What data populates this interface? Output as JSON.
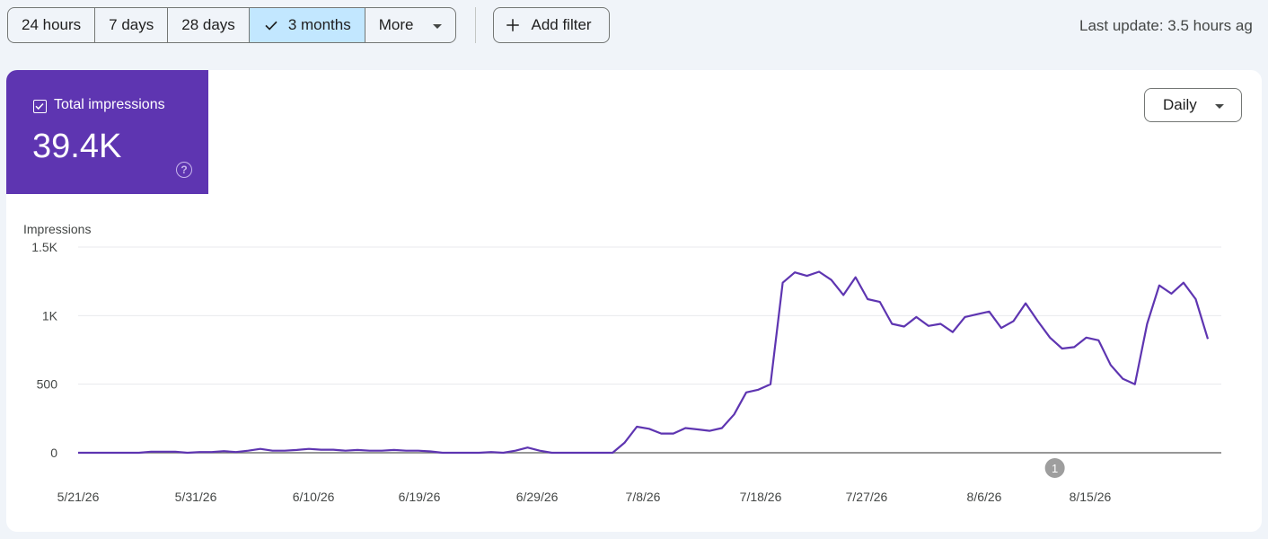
{
  "toolbar": {
    "ranges": [
      "24 hours",
      "7 days",
      "28 days",
      "3 months",
      "More"
    ],
    "selected": "3 months",
    "add_filter": "Add filter",
    "last_update": "Last update: 3.5 hours ag"
  },
  "metric": {
    "label": "Total impressions",
    "value": "39.4K",
    "color": "#5e35b1"
  },
  "granularity": "Daily",
  "chart_data": {
    "type": "line",
    "ylabel": "Impressions",
    "ylim": [
      0,
      1500
    ],
    "yticks": [
      "1.5K",
      "1K",
      "500",
      "0"
    ],
    "xticks": [
      "5/21/26",
      "5/31/26",
      "6/10/26",
      "6/19/26",
      "6/29/26",
      "7/8/26",
      "7/18/26",
      "7/27/26",
      "8/6/26",
      "8/15/26"
    ],
    "x_start": "5/21/26",
    "x_end": "8/25/26",
    "annotation": {
      "label": "1",
      "date": "8/12/26"
    },
    "series": [
      {
        "color": "#5e35b1",
        "values": [
          0,
          0,
          0,
          0,
          0,
          0,
          8,
          8,
          8,
          0,
          5,
          5,
          12,
          5,
          15,
          28,
          15,
          15,
          20,
          28,
          22,
          22,
          15,
          20,
          15,
          15,
          20,
          15,
          15,
          10,
          0,
          0,
          0,
          0,
          5,
          0,
          15,
          38,
          15,
          0,
          0,
          0,
          0,
          0,
          0,
          75,
          190,
          175,
          140,
          140,
          180,
          170,
          160,
          180,
          280,
          440,
          460,
          500,
          1240,
          1315,
          1290,
          1320,
          1260,
          1150,
          1280,
          1120,
          1100,
          940,
          920,
          990,
          925,
          940,
          880,
          990,
          1010,
          1030,
          910,
          960,
          1090,
          960,
          840,
          760,
          770,
          840,
          820,
          640,
          540,
          500,
          940,
          1220,
          1160,
          1240,
          1120,
          830
        ]
      }
    ]
  }
}
